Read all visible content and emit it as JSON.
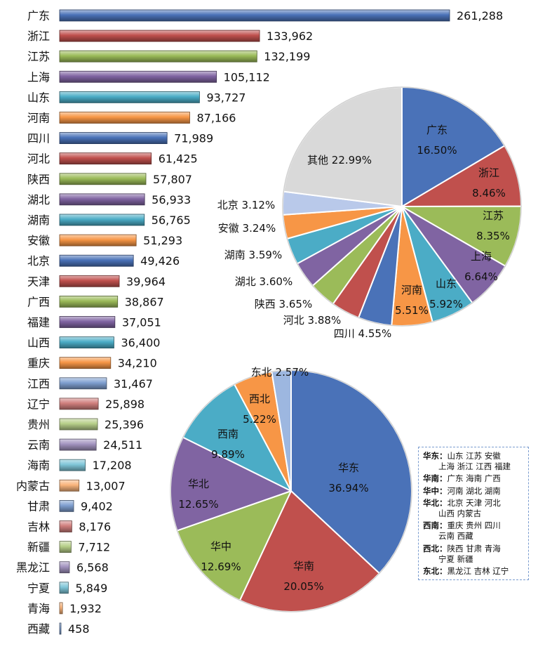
{
  "chart_data": [
    {
      "type": "bar",
      "orientation": "horizontal",
      "categories": [
        "广东",
        "浙江",
        "江苏",
        "上海",
        "山东",
        "河南",
        "四川",
        "河北",
        "陕西",
        "湖北",
        "湖南",
        "安徽",
        "北京",
        "天津",
        "广西",
        "福建",
        "山西",
        "重庆",
        "江西",
        "辽宁",
        "贵州",
        "云南",
        "海南",
        "内蒙古",
        "甘肃",
        "吉林",
        "新疆",
        "黑龙江",
        "宁夏",
        "青海",
        "西藏"
      ],
      "values": [
        261288,
        133962,
        132199,
        105112,
        93727,
        87166,
        71989,
        61425,
        57807,
        56933,
        56765,
        51293,
        49426,
        39964,
        38867,
        37051,
        36400,
        34210,
        31467,
        25898,
        25396,
        24511,
        17208,
        13007,
        9402,
        8176,
        7712,
        6568,
        5849,
        1932,
        458
      ],
      "value_labels": [
        "261,288",
        "133,962",
        "132,199",
        "105,112",
        "93,727",
        "87,166",
        "71,989",
        "61,425",
        "57,807",
        "56,933",
        "56,765",
        "51,293",
        "49,426",
        "39,964",
        "38,867",
        "37,051",
        "36,400",
        "34,210",
        "31,467",
        "25,898",
        "25,396",
        "24,511",
        "17,208",
        "13,007",
        "9,402",
        "8,176",
        "7,712",
        "6,568",
        "5,849",
        "1,932",
        "458"
      ],
      "bar_colors": [
        "#4a72b8",
        "#c0504d",
        "#9bbb59",
        "#8064a2",
        "#4bacc6",
        "#f79646",
        "#4a72b8",
        "#c0504d",
        "#9bbb59",
        "#8064a2",
        "#4bacc6",
        "#f79646",
        "#4a72b8",
        "#c0504d",
        "#9bbb59",
        "#8064a2",
        "#4bacc6",
        "#f79646",
        "#7f9fd0",
        "#d07f7d",
        "#b7cf89",
        "#a293bf",
        "#7fc6d8",
        "#f9b47c",
        "#7f9fd0",
        "#d07f7d",
        "#b7cf89",
        "#a293bf",
        "#7fc6d8",
        "#f9b47c",
        "#7f9fd0"
      ]
    },
    {
      "type": "pie",
      "labels": [
        "广东",
        "浙江",
        "江苏",
        "上海",
        "山东",
        "河南",
        "四川",
        "河北",
        "陕西",
        "湖北",
        "湖南",
        "安徽",
        "北京",
        "其他"
      ],
      "values": [
        16.5,
        8.46,
        8.35,
        6.64,
        5.92,
        5.51,
        4.55,
        3.88,
        3.65,
        3.6,
        3.59,
        3.24,
        3.12,
        22.99
      ],
      "value_labels": [
        "16.50%",
        "8.46%",
        "8.35%",
        "6.64%",
        "5.92%",
        "5.51%",
        "4.55%",
        "3.88%",
        "3.65%",
        "3.60%",
        "3.59%",
        "3.24%",
        "3.12%",
        "22.99%"
      ],
      "colors": [
        "#4a72b8",
        "#c0504d",
        "#9bbb59",
        "#8064a2",
        "#4bacc6",
        "#f79646",
        "#4a72b8",
        "#c0504d",
        "#9bbb59",
        "#8064a2",
        "#4bacc6",
        "#f79646",
        "#b9c9ea",
        "#d9d9d9"
      ],
      "label_outside": [
        false,
        false,
        false,
        false,
        false,
        false,
        true,
        true,
        true,
        true,
        true,
        true,
        true,
        false
      ]
    },
    {
      "type": "pie",
      "labels": [
        "华东",
        "华南",
        "华中",
        "华北",
        "西南",
        "西北",
        "东北"
      ],
      "values": [
        36.94,
        20.05,
        12.69,
        12.65,
        9.89,
        5.22,
        2.57
      ],
      "value_labels": [
        "36.94%",
        "20.05%",
        "12.69%",
        "12.65%",
        "9.89%",
        "5.22%",
        "2.57%"
      ],
      "colors": [
        "#4a72b8",
        "#c0504d",
        "#9bbb59",
        "#8064a2",
        "#4bacc6",
        "#f79646",
        "#9db7e0"
      ],
      "label_outside": [
        false,
        false,
        false,
        false,
        false,
        false,
        true
      ]
    }
  ],
  "legend": {
    "entries": [
      {
        "region": "华东：",
        "lines": [
          "山东 江苏 安徽",
          "上海 浙江 江西 福建"
        ]
      },
      {
        "region": "华南：",
        "lines": [
          "广东 海南 广西"
        ]
      },
      {
        "region": "华中：",
        "lines": [
          "河南 湖北 湖南"
        ]
      },
      {
        "region": "华北：",
        "lines": [
          "北京 天津 河北",
          "山西 内蒙古"
        ]
      },
      {
        "region": "西南：",
        "lines": [
          "重庆 贵州 四川",
          "云南 西藏"
        ]
      },
      {
        "region": "西北：",
        "lines": [
          "陕西 甘肃 青海",
          "宁夏 新疆"
        ]
      },
      {
        "region": "东北：",
        "lines": [
          "黑龙江 吉林 辽宁"
        ]
      }
    ]
  }
}
